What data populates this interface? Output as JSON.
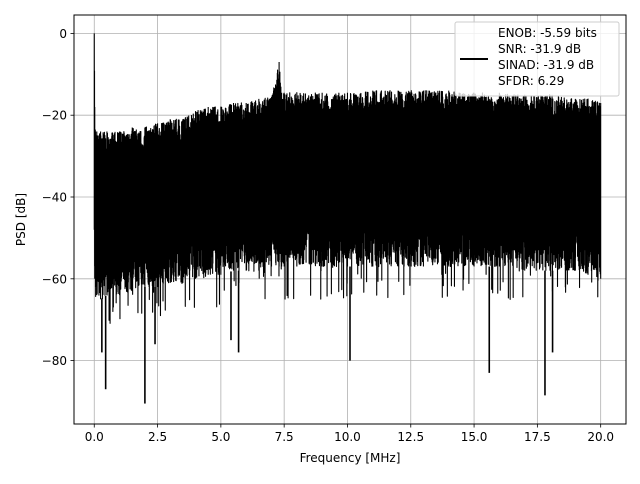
{
  "chart_data": {
    "type": "line",
    "title": "",
    "xlabel": "Frequency [MHz]",
    "ylabel": "PSD [dB]",
    "xlim": [
      -0.8,
      21.0
    ],
    "ylim": [
      -95.5,
      4.5
    ],
    "x_ticks": [
      0.0,
      2.5,
      5.0,
      7.5,
      10.0,
      12.5,
      15.0,
      17.5,
      20.0
    ],
    "x_tick_labels": [
      "0.0",
      "2.5",
      "5.0",
      "7.5",
      "10.0",
      "12.5",
      "15.0",
      "17.5",
      "20.0"
    ],
    "y_ticks": [
      0,
      -20,
      -40,
      -60,
      -80
    ],
    "y_tick_labels": [
      "0",
      "−20",
      "−40",
      "−60",
      "−80"
    ],
    "grid": true,
    "legend_position": "top-right",
    "legend_lines": [
      "ENOB: -5.59 bits",
      "SNR: -31.9 dB",
      "SINAD: -31.9 dB",
      "SFDR: 6.29"
    ],
    "series": [
      {
        "color": "#000000",
        "x": [
          0.0,
          0.02,
          0.05,
          0.1,
          0.25,
          0.5,
          1.0,
          1.5,
          2.0,
          2.5,
          3.0,
          3.5,
          4.0,
          4.5,
          5.0,
          5.5,
          6.0,
          6.5,
          7.0,
          7.3,
          7.4,
          7.5,
          8.0,
          9.0,
          10.0,
          11.0,
          12.0,
          13.0,
          14.0,
          15.0,
          16.0,
          17.0,
          18.0,
          19.0,
          19.5,
          20.0
        ],
        "upper_envelope": [
          0.0,
          -18.0,
          -24.0,
          -24.0,
          -24.0,
          -24.0,
          -24.0,
          -23.0,
          -23.0,
          -22.0,
          -21.0,
          -21.0,
          -19.0,
          -18.0,
          -18.0,
          -17.0,
          -17.0,
          -16.0,
          -15.5,
          -7.0,
          -14.5,
          -14.5,
          -14.5,
          -14.5,
          -14.5,
          -14.0,
          -14.0,
          -14.0,
          -14.0,
          -14.5,
          -14.5,
          -15.0,
          -15.0,
          -16.0,
          -16.0,
          -17.0
        ],
        "typical_lower": [
          -48.0,
          -60.0,
          -62.0,
          -64.0,
          -65.0,
          -64.0,
          -64.0,
          -63.0,
          -62.0,
          -62.0,
          -61.0,
          -61.0,
          -60.0,
          -59.0,
          -59.0,
          -58.0,
          -58.0,
          -58.0,
          -57.0,
          -57.0,
          -57.0,
          -57.0,
          -57.0,
          -57.0,
          -57.0,
          -57.0,
          -57.0,
          -57.0,
          -57.0,
          -57.0,
          -57.0,
          -58.0,
          -58.0,
          -58.0,
          -59.0,
          -60.0
        ],
        "dips": [
          {
            "x": 0.3,
            "y": -78.0
          },
          {
            "x": 0.45,
            "y": -87.0
          },
          {
            "x": 2.0,
            "y": -90.5
          },
          {
            "x": 2.4,
            "y": -76.0
          },
          {
            "x": 5.4,
            "y": -75.0
          },
          {
            "x": 5.7,
            "y": -78.0
          },
          {
            "x": 10.1,
            "y": -80.0
          },
          {
            "x": 15.6,
            "y": -83.0
          },
          {
            "x": 17.8,
            "y": -88.5
          },
          {
            "x": 18.1,
            "y": -78.0
          }
        ]
      }
    ]
  }
}
